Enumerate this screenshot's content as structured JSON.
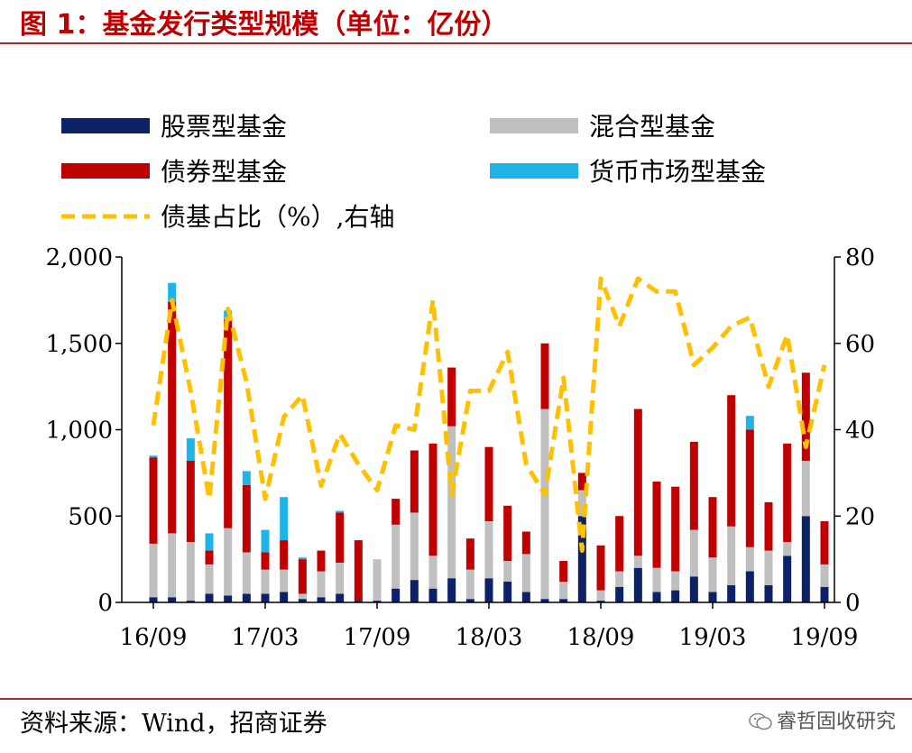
{
  "title": "图 1：基金发行类型规模（单位：亿份）",
  "source": "资料来源：Wind，招商证券",
  "watermark": "睿哲固收研究",
  "colors": {
    "stock": "#0d2266",
    "mixed": "#bfbfbf",
    "bond": "#c00000",
    "money": "#1fb4e8",
    "ratio": "#ffc000",
    "title": "#c00000"
  },
  "chart_data": {
    "type": "bar",
    "stacked": true,
    "legend": [
      "股票型基金",
      "混合型基金",
      "债券型基金",
      "货币市场型基金",
      "债基占比（%）,右轴"
    ],
    "x_tick_labels": [
      "16/09",
      "17/03",
      "17/09",
      "18/03",
      "18/09",
      "19/03",
      "19/09"
    ],
    "y_left": {
      "ticks": [
        "0",
        "500",
        "1,000",
        "1,500",
        "2,000"
      ],
      "range": [
        0,
        2000
      ]
    },
    "y_right": {
      "ticks": [
        "0",
        "20",
        "40",
        "60",
        "80"
      ],
      "range": [
        0,
        80
      ]
    },
    "series": [
      {
        "name": "股票型基金",
        "axis": "left",
        "values": [
          30,
          30,
          10,
          50,
          40,
          50,
          50,
          60,
          20,
          30,
          50,
          10,
          10,
          80,
          130,
          80,
          140,
          20,
          140,
          120,
          60,
          20,
          20,
          500,
          10,
          90,
          200,
          60,
          70,
          150,
          60,
          100,
          180,
          100,
          270,
          500,
          90
        ]
      },
      {
        "name": "混合型基金",
        "axis": "left",
        "values": [
          310,
          370,
          340,
          170,
          390,
          240,
          140,
          130,
          30,
          150,
          180,
          0,
          240,
          370,
          390,
          190,
          880,
          170,
          330,
          120,
          220,
          1100,
          100,
          150,
          60,
          90,
          70,
          140,
          110,
          270,
          200,
          340,
          140,
          200,
          80,
          320,
          130
        ]
      },
      {
        "name": "债券型基金",
        "axis": "left",
        "values": [
          500,
          1340,
          470,
          80,
          1210,
          390,
          100,
          170,
          200,
          120,
          290,
          350,
          0,
          150,
          360,
          650,
          340,
          180,
          430,
          320,
          130,
          380,
          120,
          100,
          260,
          320,
          850,
          500,
          490,
          510,
          350,
          760,
          680,
          280,
          570,
          510,
          250
        ]
      },
      {
        "name": "货币市场型基金",
        "axis": "left",
        "values": [
          10,
          110,
          130,
          100,
          50,
          80,
          130,
          250,
          10,
          0,
          10,
          0,
          0,
          0,
          0,
          0,
          0,
          0,
          0,
          0,
          0,
          0,
          0,
          0,
          0,
          0,
          0,
          0,
          0,
          0,
          0,
          0,
          80,
          0,
          0,
          0,
          0
        ]
      },
      {
        "name": "债基占比（%）,右轴",
        "axis": "right",
        "type": "line",
        "values": [
          41,
          70,
          49,
          24,
          68,
          51,
          24,
          43,
          48,
          27,
          39,
          32,
          26,
          41,
          40,
          70,
          25,
          49,
          49,
          58,
          32,
          25,
          52,
          12,
          75,
          64,
          75,
          72,
          72,
          55,
          59,
          64,
          66,
          50,
          62,
          36,
          55
        ]
      }
    ]
  }
}
